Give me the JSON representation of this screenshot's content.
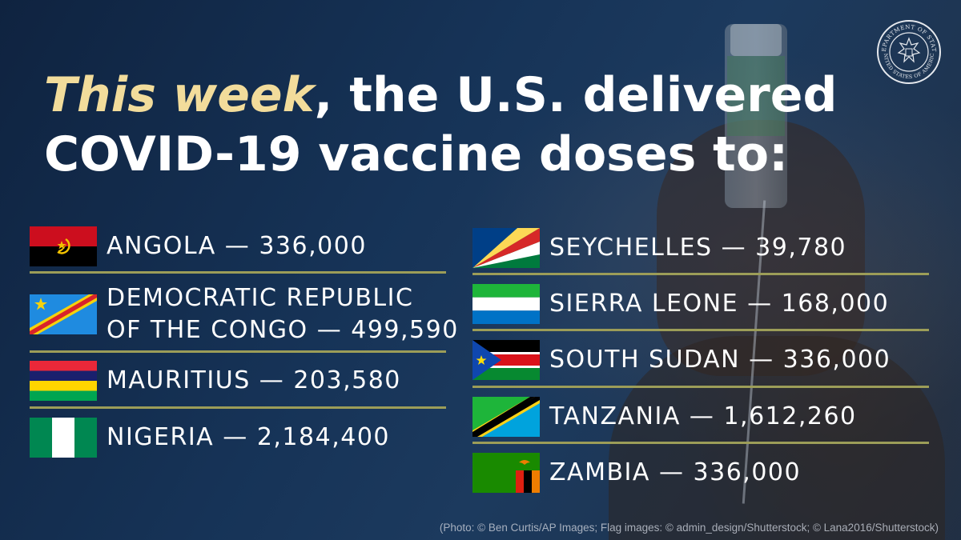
{
  "headline": {
    "highlight": "This week",
    "rest_line1": ", the U.S. delivered",
    "line2": "COVID-19 vaccine doses to:"
  },
  "seal": {
    "text_top": "DEPARTMENT OF STATE",
    "text_bottom": "UNITED STATES OF AMERICA"
  },
  "left_column": [
    {
      "flag": "angola-flag",
      "country": "ANGOLA",
      "doses": "336,000"
    },
    {
      "flag": "drc-flag",
      "country_line1": "DEMOCRATIC REPUBLIC",
      "country_line2": "OF THE CONGO",
      "doses": "499,590"
    },
    {
      "flag": "mauritius-flag",
      "country": "MAURITIUS",
      "doses": "203,580"
    },
    {
      "flag": "nigeria-flag",
      "country": "NIGERIA",
      "doses": "2,184,400"
    }
  ],
  "right_column": [
    {
      "flag": "seychelles-flag",
      "country": "SEYCHELLES",
      "doses": "39,780"
    },
    {
      "flag": "sierra-leone-flag",
      "country": "SIERRA LEONE",
      "doses": "168,000"
    },
    {
      "flag": "south-sudan-flag",
      "country": "SOUTH SUDAN",
      "doses": "336,000"
    },
    {
      "flag": "tanzania-flag",
      "country": "TANZANIA",
      "doses": "1,612,260"
    },
    {
      "flag": "zambia-flag",
      "country": "ZAMBIA",
      "doses": "336,000"
    }
  ],
  "dash": "—",
  "credit": "(Photo: © Ben Curtis/AP Images; Flag images: © admin_design/Shutterstock; © Lana2016/Shutterstock)",
  "colors": {
    "headline_highlight": "#f2dc9b",
    "rule": "#9c9d58",
    "background": "#163357"
  }
}
